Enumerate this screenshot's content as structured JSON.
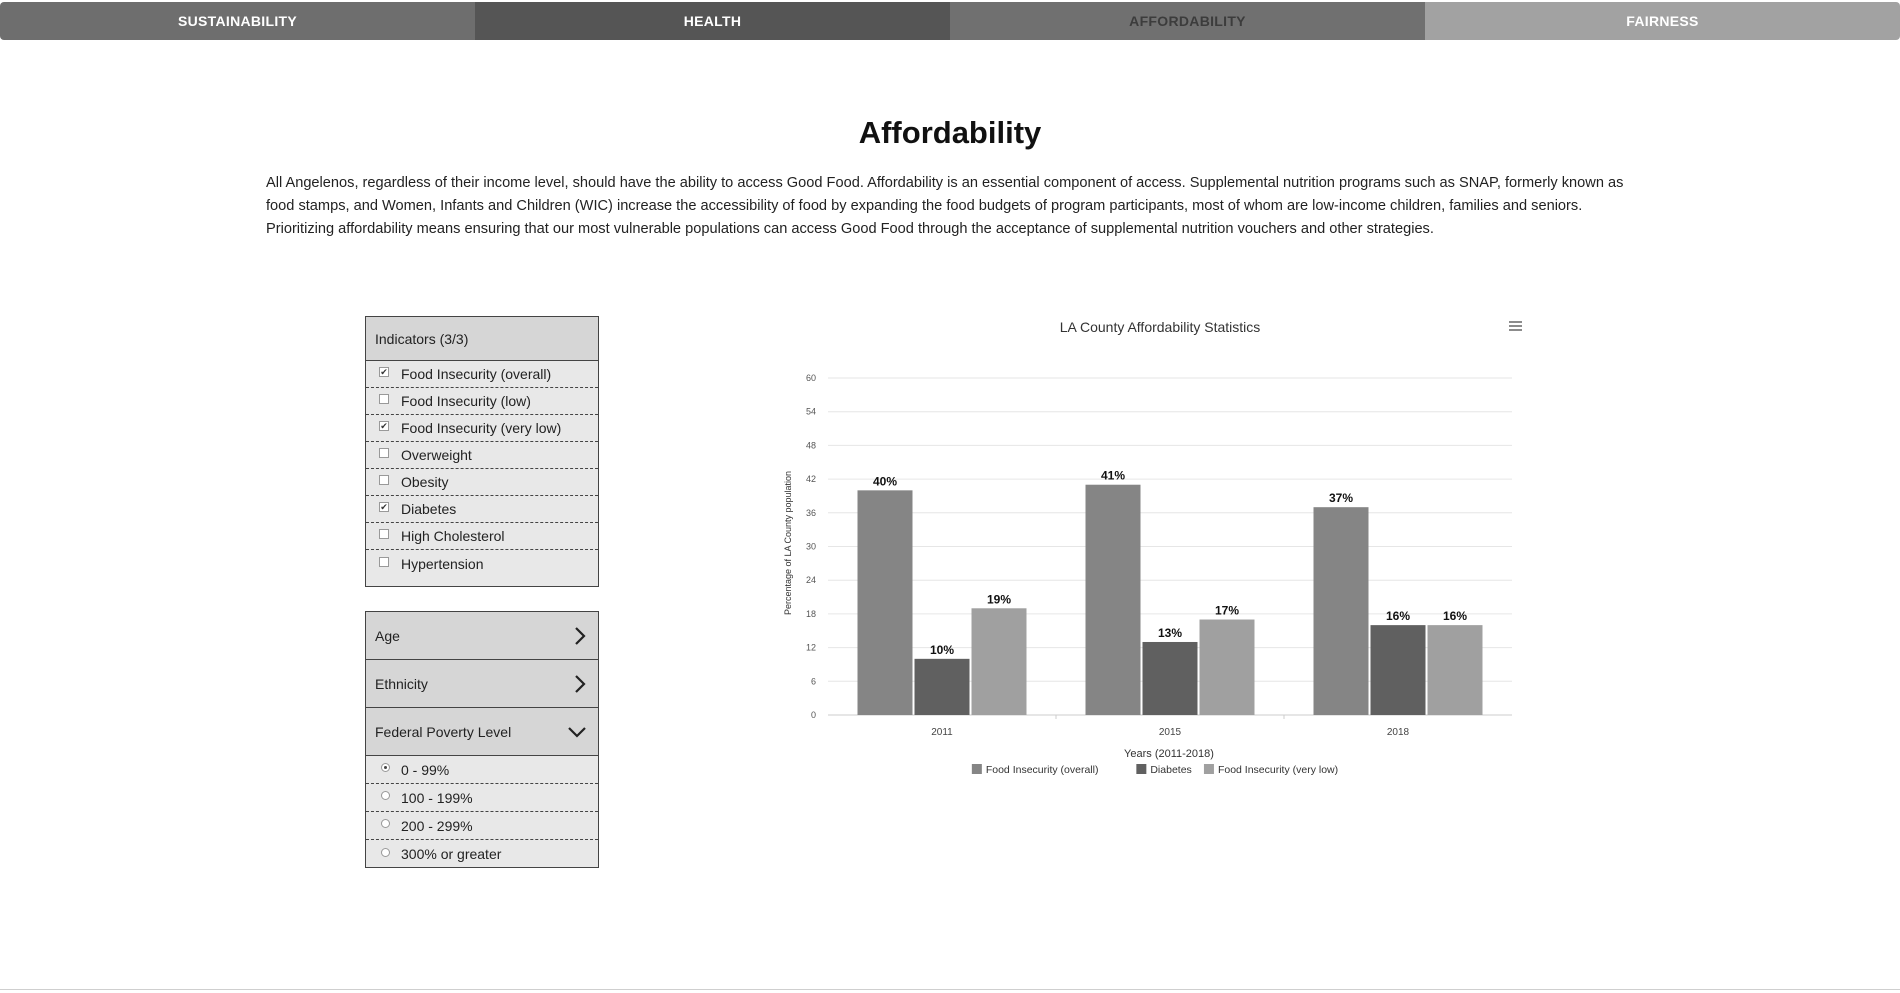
{
  "tabs": [
    {
      "label": "SUSTAINABILITY"
    },
    {
      "label": "HEALTH"
    },
    {
      "label": "AFFORDABILITY"
    },
    {
      "label": "FAIRNESS"
    }
  ],
  "page": {
    "title": "Affordability",
    "intro": "All Angelenos, regardless of their income level, should have the ability to access Good Food. Affordability is an essential component of access. Supplemental nutrition programs such as SNAP, formerly known as food stamps, and Women, Infants and Children (WIC) increase the accessibility of food by expanding the food budgets of program participants, most of whom are low-income children, families and seniors. Prioritizing affordability means ensuring that our most vulnerable populations can access Good Food through the acceptance of supplemental nutrition vouchers and other strategies."
  },
  "indicators": {
    "header": "Indicators (3/3)",
    "items": [
      {
        "label": "Food Insecurity (overall)",
        "checked": true
      },
      {
        "label": "Food Insecurity (low)",
        "checked": false
      },
      {
        "label": "Food Insecurity (very low)",
        "checked": true
      },
      {
        "label": "Overweight",
        "checked": false
      },
      {
        "label": "Obesity",
        "checked": false
      },
      {
        "label": "Diabetes",
        "checked": true
      },
      {
        "label": "High Cholesterol",
        "checked": false
      },
      {
        "label": "Hypertension",
        "checked": false
      }
    ]
  },
  "filters": {
    "age_label": "Age",
    "ethnicity_label": "Ethnicity",
    "fpl_label": "Federal Poverty Level",
    "fpl_options": [
      {
        "label": "0 - 99%",
        "selected": true
      },
      {
        "label": "100 - 199%",
        "selected": false
      },
      {
        "label": "200 - 299%",
        "selected": false
      },
      {
        "label": "300% or greater",
        "selected": false
      }
    ]
  },
  "colors": {
    "series_overall": "#858585",
    "series_diabetes": "#606060",
    "series_very_low": "#a0a0a0"
  },
  "chart_data": {
    "type": "bar",
    "title": "LA County Affordability Statistics",
    "xlabel": "Years (2011-2018)",
    "ylabel": "Percentage of LA County population",
    "categories": [
      "2011",
      "2015",
      "2018"
    ],
    "ylim": [
      0,
      60
    ],
    "yticks": [
      0,
      6,
      12,
      18,
      24,
      30,
      36,
      42,
      48,
      54,
      60
    ],
    "grid": true,
    "legend_position": "bottom",
    "series": [
      {
        "name": "Food Insecurity (overall)",
        "values": [
          40,
          41,
          37
        ],
        "labels": [
          "40%",
          "41%",
          "37%"
        ],
        "color": "#858585"
      },
      {
        "name": "Diabetes",
        "values": [
          10,
          13,
          16
        ],
        "labels": [
          "10%",
          "13%",
          "16%"
        ],
        "color": "#606060"
      },
      {
        "name": "Food Insecurity (very low)",
        "values": [
          19,
          17,
          16
        ],
        "labels": [
          "19%",
          "17%",
          "16%"
        ],
        "color": "#a0a0a0"
      }
    ]
  }
}
